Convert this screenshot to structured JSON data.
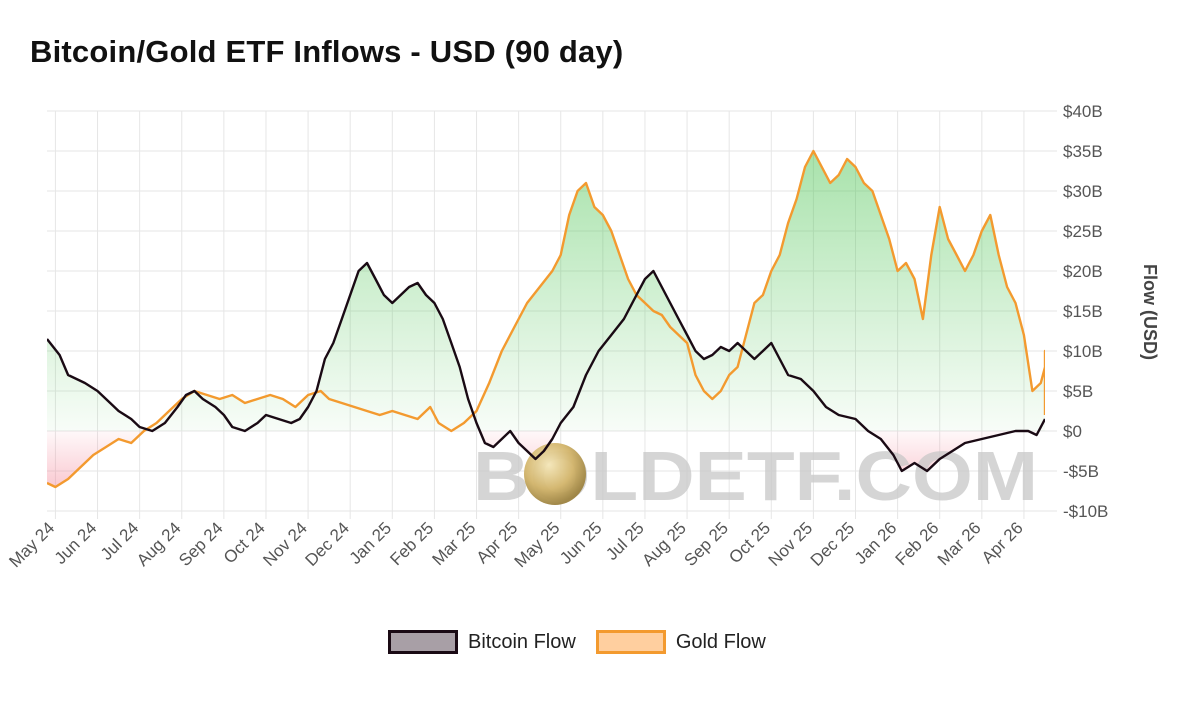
{
  "title": "Bitcoin/Gold ETF Inflows - USD (90 day)",
  "watermark": "BOLDETF.COM",
  "legend": {
    "bitcoin_label": "Bitcoin Flow",
    "gold_label": "Gold Flow"
  },
  "colors": {
    "bitcoin": "#1a0a14",
    "gold": "#f39a2f",
    "bitcoin_swatch": "#a89fa6",
    "gold_swatch": "#ffcf9f",
    "positive_fill": "#4cc452",
    "negative_fill": "#f27a8e",
    "grid": "#e6e6e6"
  },
  "chart_data": {
    "type": "line",
    "title": "Bitcoin/Gold ETF Inflows - USD (90 day)",
    "ylabel": "Flow (USD)",
    "xlabel": "",
    "ylim": [
      -10,
      40
    ],
    "y_unit": "billion USD",
    "y_ticks": [
      -10,
      -5,
      0,
      5,
      10,
      15,
      20,
      25,
      30,
      35,
      40
    ],
    "y_tick_labels": [
      "-$10B",
      "-$5B",
      "$0",
      "$5B",
      "$10B",
      "$15B",
      "$20B",
      "$25B",
      "$30B",
      "$35B",
      "$40B"
    ],
    "x_ticks": [
      "May 24",
      "Jun 24",
      "Jul 24",
      "Aug 24",
      "Sep 24",
      "Oct 24",
      "Nov 24",
      "Dec 24",
      "Jan 25",
      "Feb 25",
      "Mar 25",
      "Apr 25",
      "May 25",
      "Jun 25",
      "Jul 25",
      "Aug 25",
      "Sep 25",
      "Oct 25",
      "Nov 25",
      "Dec 25",
      "Jan 26",
      "Feb 26",
      "Mar 26",
      "Apr 26"
    ],
    "x_range_months": [
      -0.2,
      23.5
    ],
    "legend_position": "bottom-center",
    "grid": true,
    "series": [
      {
        "name": "Bitcoin Flow",
        "color": "#1a0a14",
        "points": [
          [
            -0.2,
            11.5
          ],
          [
            0.1,
            9.5
          ],
          [
            0.3,
            7
          ],
          [
            0.7,
            6
          ],
          [
            1.0,
            5
          ],
          [
            1.3,
            3.5
          ],
          [
            1.5,
            2.5
          ],
          [
            1.8,
            1.5
          ],
          [
            2.0,
            0.5
          ],
          [
            2.3,
            0
          ],
          [
            2.6,
            1
          ],
          [
            2.9,
            3
          ],
          [
            3.1,
            4.5
          ],
          [
            3.3,
            5
          ],
          [
            3.5,
            4
          ],
          [
            3.8,
            3
          ],
          [
            4.0,
            2
          ],
          [
            4.2,
            0.5
          ],
          [
            4.5,
            0
          ],
          [
            4.8,
            1
          ],
          [
            5.0,
            2
          ],
          [
            5.3,
            1.5
          ],
          [
            5.6,
            1
          ],
          [
            5.8,
            1.5
          ],
          [
            6.0,
            3
          ],
          [
            6.2,
            5
          ],
          [
            6.4,
            9
          ],
          [
            6.6,
            11
          ],
          [
            6.8,
            14
          ],
          [
            7.0,
            17
          ],
          [
            7.2,
            20
          ],
          [
            7.4,
            21
          ],
          [
            7.6,
            19
          ],
          [
            7.8,
            17
          ],
          [
            8.0,
            16
          ],
          [
            8.2,
            17
          ],
          [
            8.4,
            18
          ],
          [
            8.6,
            18.5
          ],
          [
            8.8,
            17
          ],
          [
            9.0,
            16
          ],
          [
            9.2,
            14
          ],
          [
            9.4,
            11
          ],
          [
            9.6,
            8
          ],
          [
            9.8,
            4
          ],
          [
            10.0,
            1
          ],
          [
            10.2,
            -1.5
          ],
          [
            10.4,
            -2
          ],
          [
            10.6,
            -1
          ],
          [
            10.8,
            0
          ],
          [
            11.0,
            -1.5
          ],
          [
            11.2,
            -2.5
          ],
          [
            11.4,
            -3.5
          ],
          [
            11.6,
            -2.5
          ],
          [
            11.8,
            -1
          ],
          [
            12.0,
            1
          ],
          [
            12.3,
            3
          ],
          [
            12.6,
            7
          ],
          [
            12.9,
            10
          ],
          [
            13.2,
            12
          ],
          [
            13.5,
            14
          ],
          [
            13.8,
            17
          ],
          [
            14.0,
            19
          ],
          [
            14.2,
            20
          ],
          [
            14.4,
            18
          ],
          [
            14.6,
            16
          ],
          [
            14.8,
            14
          ],
          [
            15.0,
            12
          ],
          [
            15.2,
            10
          ],
          [
            15.4,
            9
          ],
          [
            15.6,
            9.5
          ],
          [
            15.8,
            10.5
          ],
          [
            16.0,
            10
          ],
          [
            16.2,
            11
          ],
          [
            16.4,
            10
          ],
          [
            16.6,
            9
          ],
          [
            16.8,
            10
          ],
          [
            17.0,
            11
          ],
          [
            17.2,
            9
          ],
          [
            17.4,
            7
          ],
          [
            17.7,
            6.5
          ],
          [
            18.0,
            5
          ],
          [
            18.3,
            3
          ],
          [
            18.6,
            2
          ],
          [
            19.0,
            1.5
          ],
          [
            19.3,
            0
          ],
          [
            19.6,
            -1
          ],
          [
            19.9,
            -3
          ],
          [
            20.1,
            -5
          ],
          [
            20.4,
            -4
          ],
          [
            20.7,
            -5
          ],
          [
            21.0,
            -3.5
          ],
          [
            21.3,
            -2.5
          ],
          [
            21.6,
            -1.5
          ],
          [
            22.0,
            -1
          ],
          [
            22.4,
            -0.5
          ],
          [
            22.8,
            0
          ],
          [
            23.1,
            0
          ],
          [
            23.3,
            -0.5
          ],
          [
            23.5,
            1.5
          ]
        ]
      },
      {
        "name": "Gold Flow",
        "color": "#f39a2f",
        "points": [
          [
            -0.2,
            -6.5
          ],
          [
            0.0,
            -7
          ],
          [
            0.3,
            -6
          ],
          [
            0.6,
            -4.5
          ],
          [
            0.9,
            -3
          ],
          [
            1.2,
            -2
          ],
          [
            1.5,
            -1
          ],
          [
            1.8,
            -1.5
          ],
          [
            2.1,
            0
          ],
          [
            2.4,
            1
          ],
          [
            2.7,
            2.5
          ],
          [
            3.0,
            4
          ],
          [
            3.3,
            5
          ],
          [
            3.6,
            4.5
          ],
          [
            3.9,
            4
          ],
          [
            4.2,
            4.5
          ],
          [
            4.5,
            3.5
          ],
          [
            4.8,
            4
          ],
          [
            5.1,
            4.5
          ],
          [
            5.4,
            4
          ],
          [
            5.7,
            3
          ],
          [
            6.0,
            4.5
          ],
          [
            6.3,
            5
          ],
          [
            6.5,
            4
          ],
          [
            6.8,
            3.5
          ],
          [
            7.1,
            3
          ],
          [
            7.4,
            2.5
          ],
          [
            7.7,
            2
          ],
          [
            8.0,
            2.5
          ],
          [
            8.3,
            2
          ],
          [
            8.6,
            1.5
          ],
          [
            8.9,
            3
          ],
          [
            9.1,
            1
          ],
          [
            9.4,
            0
          ],
          [
            9.7,
            1
          ],
          [
            10.0,
            2.5
          ],
          [
            10.3,
            6
          ],
          [
            10.6,
            10
          ],
          [
            10.9,
            13
          ],
          [
            11.2,
            16
          ],
          [
            11.5,
            18
          ],
          [
            11.8,
            20
          ],
          [
            12.0,
            22
          ],
          [
            12.2,
            27
          ],
          [
            12.4,
            30
          ],
          [
            12.6,
            31
          ],
          [
            12.8,
            28
          ],
          [
            13.0,
            27
          ],
          [
            13.2,
            25
          ],
          [
            13.4,
            22
          ],
          [
            13.6,
            19
          ],
          [
            13.8,
            17
          ],
          [
            14.0,
            16
          ],
          [
            14.2,
            15
          ],
          [
            14.4,
            14.5
          ],
          [
            14.6,
            13
          ],
          [
            14.8,
            12
          ],
          [
            15.0,
            11
          ],
          [
            15.2,
            7
          ],
          [
            15.4,
            5
          ],
          [
            15.6,
            4
          ],
          [
            15.8,
            5
          ],
          [
            16.0,
            7
          ],
          [
            16.2,
            8
          ],
          [
            16.4,
            12
          ],
          [
            16.6,
            16
          ],
          [
            16.8,
            17
          ],
          [
            17.0,
            20
          ],
          [
            17.2,
            22
          ],
          [
            17.4,
            26
          ],
          [
            17.6,
            29
          ],
          [
            17.8,
            33
          ],
          [
            18.0,
            35
          ],
          [
            18.2,
            33
          ],
          [
            18.4,
            31
          ],
          [
            18.6,
            32
          ],
          [
            18.8,
            34
          ],
          [
            19.0,
            33
          ],
          [
            19.2,
            31
          ],
          [
            19.4,
            30
          ],
          [
            19.6,
            27
          ],
          [
            19.8,
            24
          ],
          [
            20.0,
            20
          ],
          [
            20.2,
            21
          ],
          [
            20.4,
            19
          ],
          [
            20.6,
            14
          ],
          [
            20.8,
            22
          ],
          [
            21.0,
            28
          ],
          [
            21.2,
            24
          ],
          [
            21.4,
            22
          ],
          [
            21.6,
            20
          ],
          [
            21.8,
            22
          ],
          [
            22.0,
            25
          ],
          [
            22.2,
            27
          ],
          [
            22.4,
            22
          ],
          [
            22.6,
            18
          ],
          [
            22.8,
            16
          ],
          [
            23.0,
            12
          ],
          [
            23.2,
            5
          ],
          [
            23.4,
            6
          ],
          [
            23.6,
            8
          ],
          [
            23.8,
            10
          ],
          [
            24.0,
            8
          ],
          [
            24.2,
            5
          ],
          [
            24.4,
            2
          ]
        ]
      }
    ]
  }
}
